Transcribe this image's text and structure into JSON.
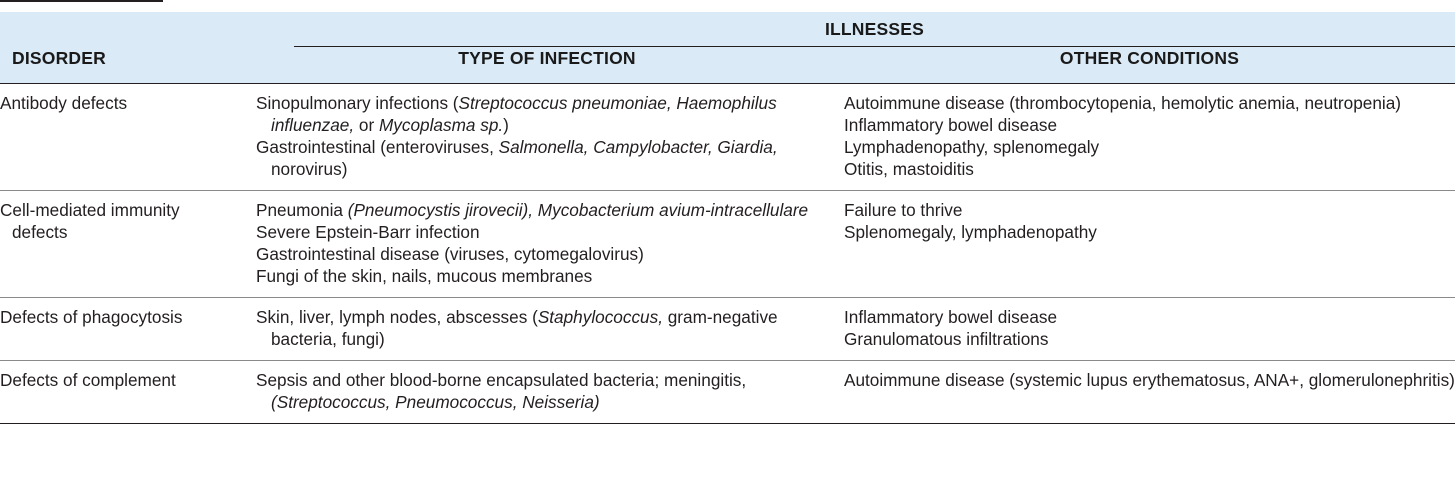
{
  "header": {
    "group": "ILLNESSES",
    "col_disorder": "DISORDER",
    "col_infection": "TYPE OF INFECTION",
    "col_other": "OTHER CONDITIONS"
  },
  "rows": [
    {
      "disorder": [
        "Antibody defects",
        ""
      ],
      "infection": [
        [
          "Sinopulmonary infections (",
          "Streptococcus pneumoniae, Haemophilus influenzae,",
          " or ",
          "Mycoplasma sp.",
          ")"
        ],
        [
          "Gastrointestinal (enteroviruses, ",
          "Salmonella, Campylobacter, Giardia,",
          " norovirus)"
        ]
      ],
      "other": [
        "Autoimmune disease (thrombocytopenia, hemolytic anemia, neutropenia)",
        "Inflammatory bowel disease",
        "Lymphadenopathy, splenomegaly",
        "Otitis, mastoiditis"
      ]
    },
    {
      "disorder": [
        "Cell-mediated immunity",
        "defects"
      ],
      "infection": [
        [
          "Pneumonia ",
          "(Pneumocystis jirovecii), Mycobacterium avium-intracellulare",
          ""
        ],
        [
          "Severe Epstein-Barr infection",
          "",
          ""
        ],
        [
          "Gastrointestinal disease (viruses, cytomegalovirus)",
          "",
          ""
        ],
        [
          "Fungi of the skin, nails, mucous membranes",
          "",
          ""
        ]
      ],
      "other": [
        "Failure to thrive",
        "Splenomegaly, lymphadenopathy"
      ]
    },
    {
      "disorder": [
        "Defects of phagocytosis",
        ""
      ],
      "infection": [
        [
          "Skin, liver, lymph nodes, abscesses (",
          "Staphylococcus,",
          " gram-negative bacteria, fungi)"
        ]
      ],
      "other": [
        "Inflammatory bowel disease",
        "Granulomatous infiltrations"
      ]
    },
    {
      "disorder": [
        "Defects of complement",
        ""
      ],
      "infection": [
        [
          "Sepsis and other blood-borne encapsulated bacteria; meningitis, ",
          "(Streptococcus, Pneumococcus, Neisseria)",
          ""
        ]
      ],
      "other": [
        "Autoimmune disease (systemic lupus erythematosus, ANA+, glomerulonephritis)"
      ]
    }
  ]
}
